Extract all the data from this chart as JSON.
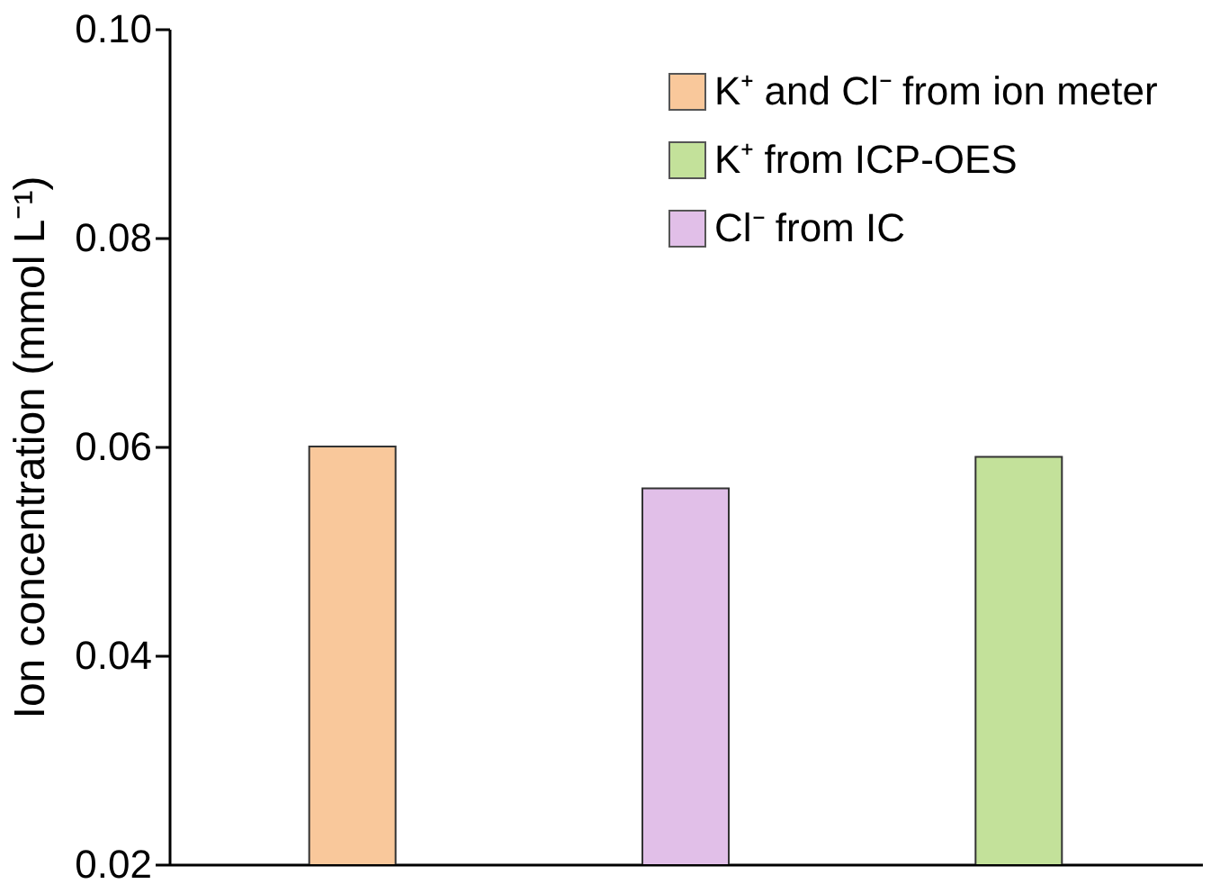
{
  "chart_data": {
    "type": "bar",
    "ylabel": "Ion concentration (mmol L⁻¹)",
    "categories": [
      null,
      null,
      null
    ],
    "series": [
      {
        "name": "K⁺ and Cl⁻ from ion meter",
        "color": "#f9c89b",
        "values": [
          0.06,
          null,
          null
        ]
      },
      {
        "name": "K⁺ from ICP-OES",
        "color": "#c3e19a",
        "values": [
          null,
          null,
          0.059
        ]
      },
      {
        "name": "Cl⁻ from IC",
        "color": "#e1bfe8",
        "values": [
          null,
          0.056,
          null
        ]
      }
    ],
    "ylim": [
      0.02,
      0.1
    ],
    "yticks": [
      0.02,
      0.04,
      0.06,
      0.08,
      {
        "value": 0.1,
        "label": "0.10"
      }
    ],
    "tick_labels": "y",
    "legend": "top right",
    "grid": false
  }
}
